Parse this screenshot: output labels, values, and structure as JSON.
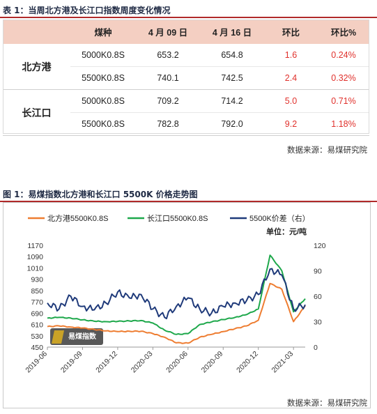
{
  "table_caption": "表 1：当周北方港及长江口指数周度变化情况",
  "table": {
    "headers": [
      "",
      "煤种",
      "4 月 09 日",
      "4 月 16 日",
      "环比",
      "环比%"
    ],
    "groups": [
      {
        "port": "北方港",
        "rows": [
          {
            "grade": "5000K0.8S",
            "apr09": "653.2",
            "apr16": "654.8",
            "change": "1.6",
            "pct": "0.24%"
          },
          {
            "grade": "5500K0.8S",
            "apr09": "740.1",
            "apr16": "742.5",
            "change": "2.4",
            "pct": "0.32%"
          }
        ]
      },
      {
        "port": "长江口",
        "rows": [
          {
            "grade": "5000K0.8S",
            "apr09": "709.2",
            "apr16": "714.2",
            "change": "5.0",
            "pct": "0.71%"
          },
          {
            "grade": "5500K0.8S",
            "apr09": "782.8",
            "apr16": "792.0",
            "change": "9.2",
            "pct": "1.18%"
          }
        ]
      }
    ],
    "source": "数据来源：易煤研究院"
  },
  "figure_caption": "图 1：易煤指数北方港和长江口 5500K 价格走势图",
  "figure_source": "数据来源：易煤研究院",
  "watermark": "易煤指数",
  "colors": {
    "north": "#ee7d31",
    "changjiang": "#1ea84b",
    "spread": "#1f3a7a",
    "accent": "#e0312c"
  },
  "chart_data": {
    "type": "line",
    "unit_label": "单位：元/吨",
    "legend_position": "top",
    "y_left": {
      "ticks": [
        450,
        530,
        610,
        690,
        770,
        850,
        930,
        1010,
        1090,
        1170
      ],
      "range": [
        450,
        1170
      ]
    },
    "y_right": {
      "ticks": [
        0,
        30,
        60,
        90,
        120
      ],
      "range": [
        0,
        120
      ]
    },
    "x_ticks": [
      "2019-06",
      "2019-09",
      "2019-12",
      "2020-03",
      "2020-06",
      "2020-09",
      "2020-12",
      "2021-03"
    ],
    "x_range": [
      "2019-06",
      "2021-04"
    ],
    "series": [
      {
        "name": "北方港5500K0.8S",
        "axis": "left",
        "points": [
          [
            "2019-06",
            595
          ],
          [
            "2019-07",
            600
          ],
          [
            "2019-08",
            592
          ],
          [
            "2019-09",
            585
          ],
          [
            "2019-10",
            575
          ],
          [
            "2019-11",
            565
          ],
          [
            "2019-12",
            560
          ],
          [
            "2020-01",
            562
          ],
          [
            "2020-02",
            562
          ],
          [
            "2020-03",
            545
          ],
          [
            "2020-04",
            520
          ],
          [
            "2020-05",
            480
          ],
          [
            "2020-06",
            478
          ],
          [
            "2020-07",
            520
          ],
          [
            "2020-08",
            540
          ],
          [
            "2020-09",
            560
          ],
          [
            "2020-10",
            580
          ],
          [
            "2020-11",
            600
          ],
          [
            "2020-12",
            640
          ],
          [
            "2021-01",
            900
          ],
          [
            "2021-02",
            860
          ],
          [
            "2021-03",
            630
          ],
          [
            "2021-04",
            742
          ]
        ]
      },
      {
        "name": "长江口5500K0.8S",
        "axis": "left",
        "points": [
          [
            "2019-06",
            655
          ],
          [
            "2019-07",
            660
          ],
          [
            "2019-08",
            655
          ],
          [
            "2019-09",
            643
          ],
          [
            "2019-10",
            633
          ],
          [
            "2019-11",
            630
          ],
          [
            "2019-12",
            632
          ],
          [
            "2020-01",
            635
          ],
          [
            "2020-02",
            638
          ],
          [
            "2020-03",
            620
          ],
          [
            "2020-04",
            570
          ],
          [
            "2020-05",
            540
          ],
          [
            "2020-06",
            545
          ],
          [
            "2020-07",
            610
          ],
          [
            "2020-08",
            628
          ],
          [
            "2020-09",
            645
          ],
          [
            "2020-10",
            660
          ],
          [
            "2020-11",
            680
          ],
          [
            "2020-12",
            720
          ],
          [
            "2021-01",
            1100
          ],
          [
            "2021-02",
            990
          ],
          [
            "2021-03",
            700
          ],
          [
            "2021-04",
            792
          ]
        ]
      },
      {
        "name": "5500K价差（右）",
        "axis": "right",
        "points": [
          [
            "2019-06",
            52
          ],
          [
            "2019-07",
            45
          ],
          [
            "2019-08",
            60
          ],
          [
            "2019-09",
            48
          ],
          [
            "2019-10",
            44
          ],
          [
            "2019-11",
            52
          ],
          [
            "2019-12",
            65
          ],
          [
            "2020-01",
            58
          ],
          [
            "2020-02",
            62
          ],
          [
            "2020-03",
            45
          ],
          [
            "2020-04",
            35
          ],
          [
            "2020-05",
            48
          ],
          [
            "2020-06",
            58
          ],
          [
            "2020-07",
            45
          ],
          [
            "2020-08",
            40
          ],
          [
            "2020-09",
            48
          ],
          [
            "2020-10",
            52
          ],
          [
            "2020-11",
            55
          ],
          [
            "2020-12",
            62
          ],
          [
            "2021-01",
            92
          ],
          [
            "2021-02",
            85
          ],
          [
            "2021-03",
            45
          ],
          [
            "2021-04",
            50
          ]
        ]
      }
    ]
  }
}
